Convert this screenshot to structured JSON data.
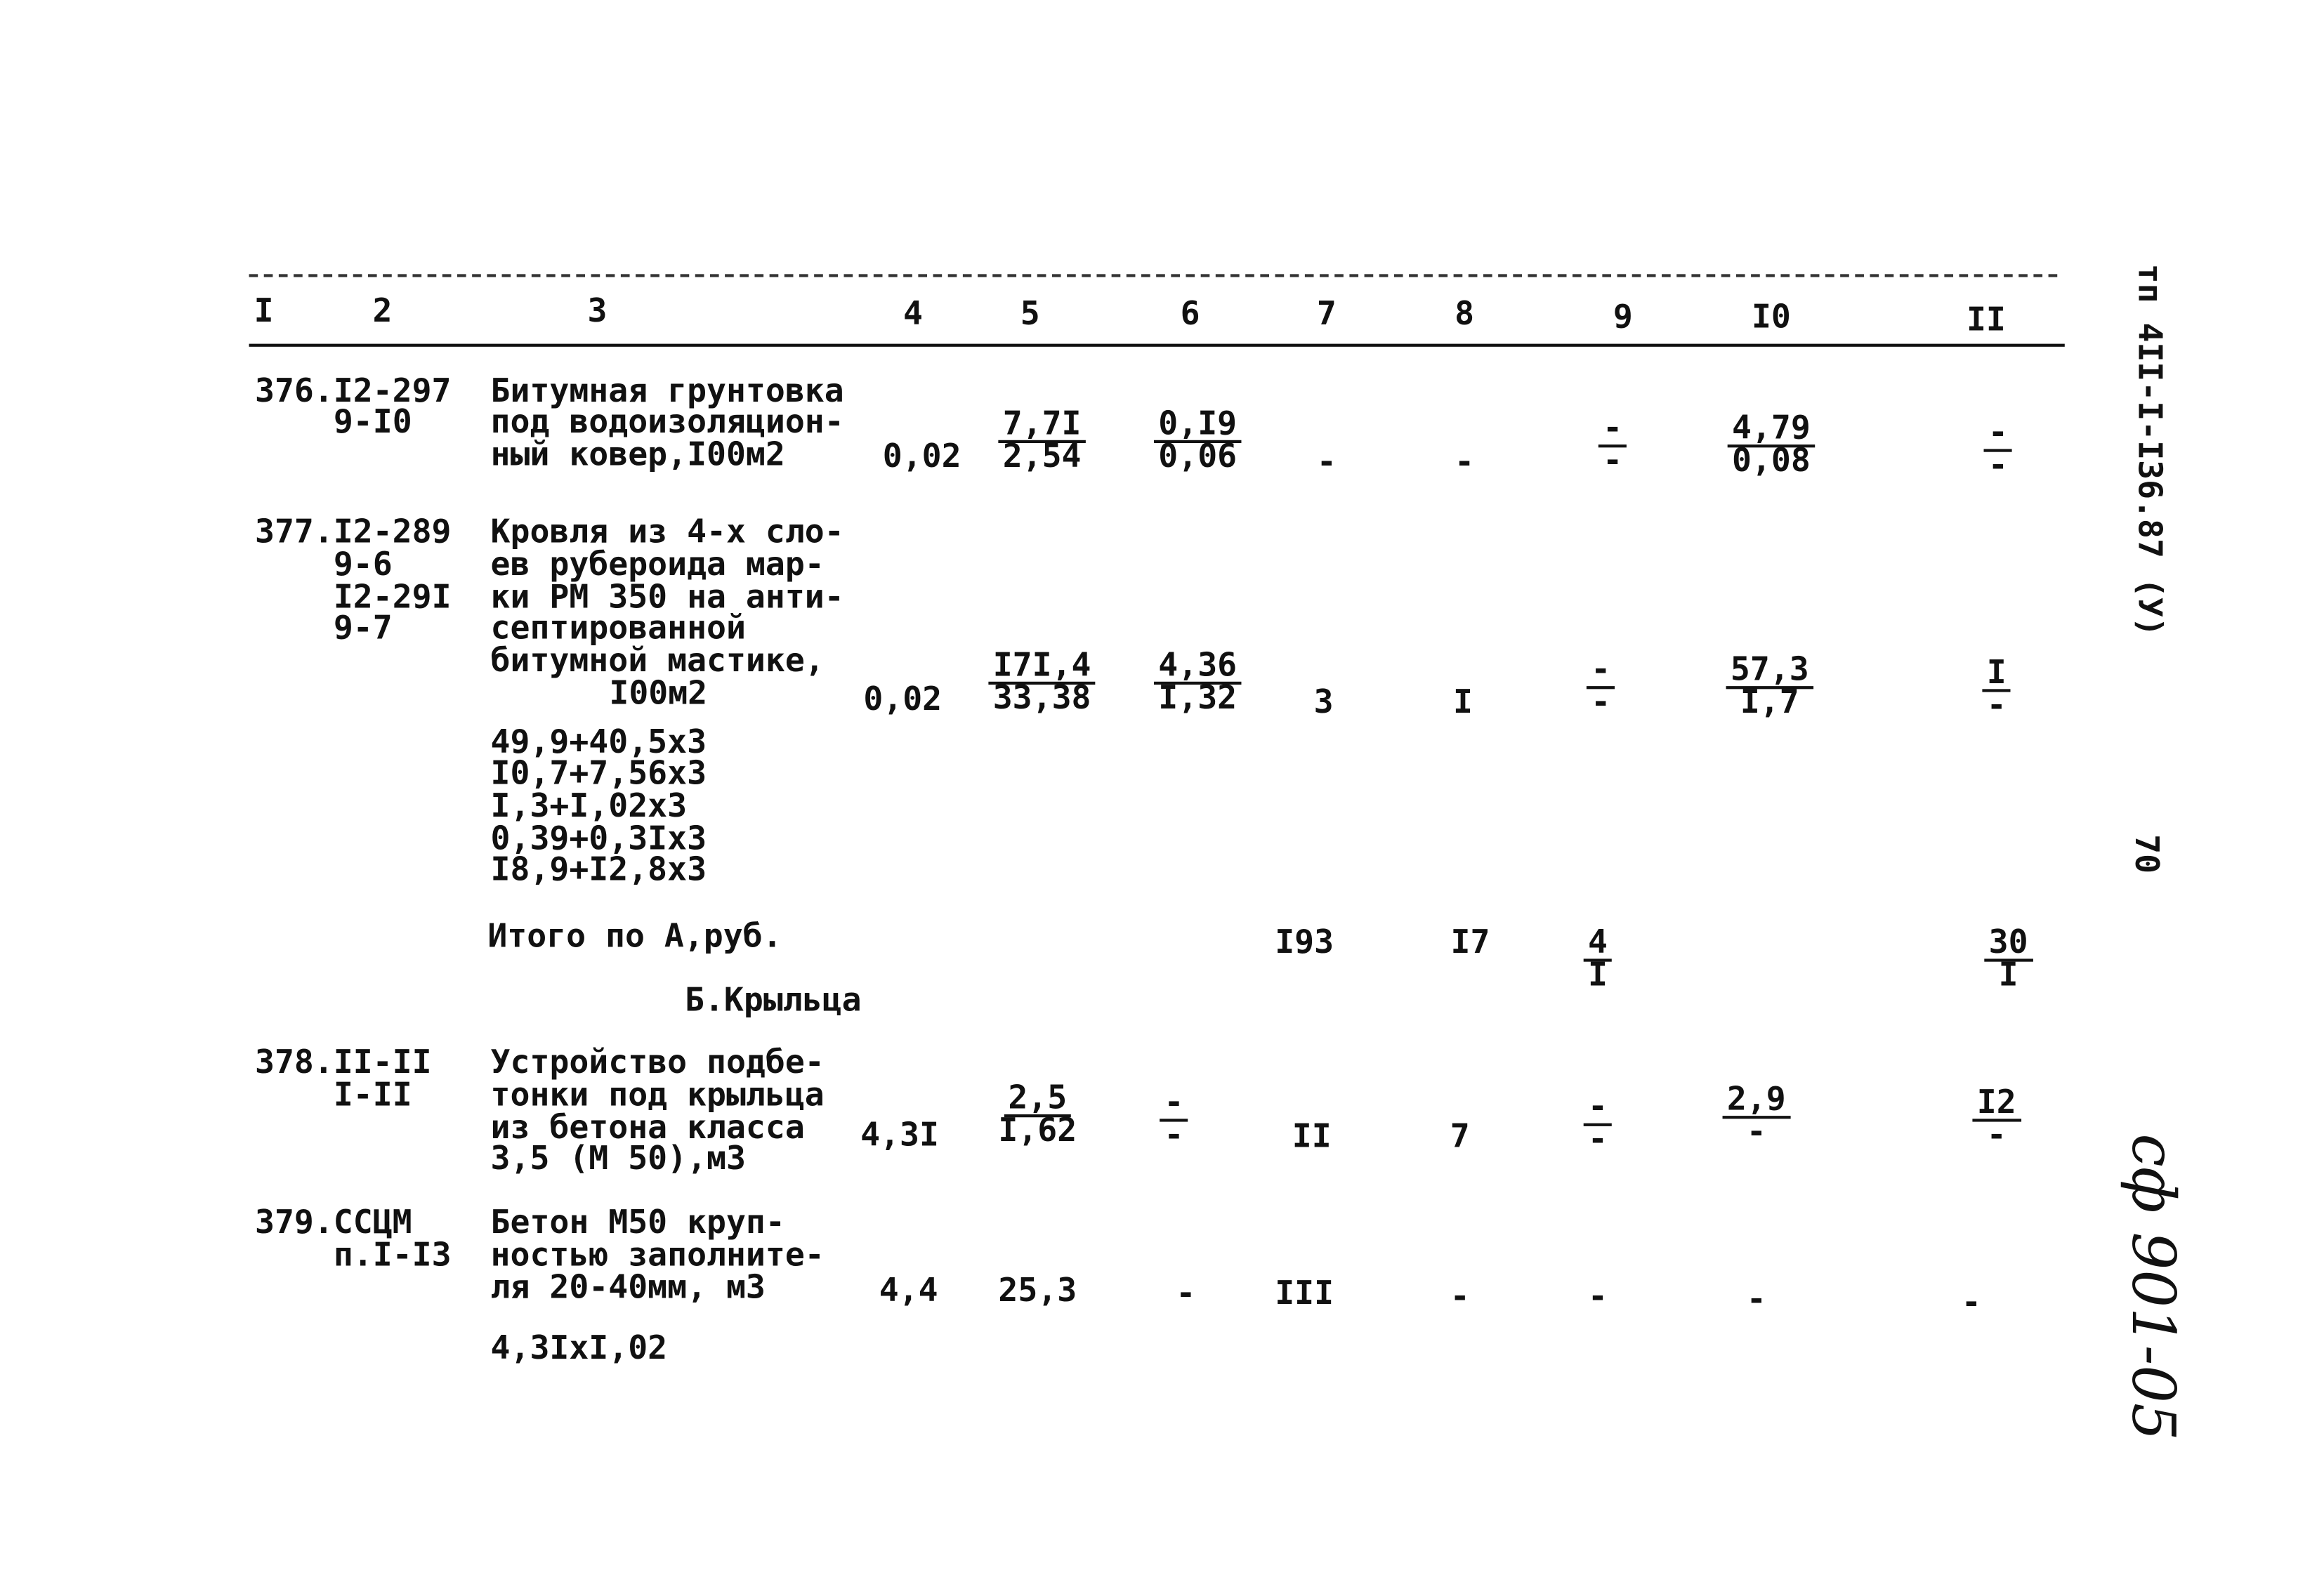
{
  "header": {
    "columns": [
      "I",
      "2",
      "3",
      "4",
      "5",
      "6",
      "7",
      "8",
      "9",
      "I0",
      "II"
    ]
  },
  "rows": [
    {
      "code": [
        "376.I2-297",
        "9-I0"
      ],
      "desc": [
        "Битумная грунтовка",
        "под водоизоляцион-",
        "ный ковер,I00м2"
      ],
      "c4": "0,02",
      "c5": {
        "num": "7,7I",
        "den": "2,54"
      },
      "c6": {
        "num": "0,I9",
        "den": "0,06"
      },
      "c7": "-",
      "c8": "-",
      "c9": {
        "num": "-",
        "den": "-"
      },
      "c10": {
        "num": "4,79",
        "den": "0,08"
      },
      "c11": {
        "num": "-",
        "den": "-"
      }
    },
    {
      "code": [
        "377.I2-289",
        "9-6",
        "I2-29I",
        "9-7"
      ],
      "desc": [
        "Кровля из 4-х сло-",
        "ев рубероида мар-",
        "ки РМ 350 на анти-",
        "септированной",
        "битумной мастике,",
        "I00м2"
      ],
      "c4": "0,02",
      "c5": {
        "num": "I7I,4",
        "den": "33,38"
      },
      "c6": {
        "num": "4,36",
        "den": "I,32"
      },
      "c7": "3",
      "c8": "I",
      "c9": {
        "num": "-",
        "den": "-"
      },
      "c10": {
        "num": "57,3",
        "den": "I,7"
      },
      "c11": {
        "num": "I",
        "den": "-"
      },
      "formulas": [
        "49,9+40,5x3",
        "I0,7+7,56x3",
        "I,3+I,02x3",
        "0,39+0,3Ix3",
        "I8,9+I2,8x3"
      ]
    },
    {
      "code": [
        "378.II-II",
        "I-II"
      ],
      "desc": [
        "Устройство подбе-",
        "тонки под крыльца",
        "из бетона класса",
        "3,5 (М 50),м3"
      ],
      "c4": "4,3I",
      "c5": {
        "num": "2,5",
        "den": "I,62"
      },
      "c6": {
        "num": "-",
        "den": "-"
      },
      "c7": "II",
      "c8": "7",
      "c9": {
        "num": "-",
        "den": "-"
      },
      "c10": {
        "num": "2,9",
        "den": "-"
      },
      "c11": {
        "num": "I2",
        "den": "-"
      }
    },
    {
      "code": [
        "379.ССЦМ",
        "п.I-I3"
      ],
      "desc": [
        "Бетон М50 круп-",
        "ностью заполните-",
        "ля 20-40мм, м3"
      ],
      "c4": "4,4",
      "c5": "25,3",
      "c6": "-",
      "c7": "III",
      "c8": "-",
      "c9": "-",
      "c10": "-",
      "c11": "-",
      "formula": "4,3IxI,02"
    }
  ],
  "total": {
    "label": "Итого по А,руб.",
    "c7": "I93",
    "c8": "I7",
    "c9": {
      "num": "4",
      "den": "I"
    },
    "c11": {
      "num": "30",
      "den": "I"
    }
  },
  "section": "Б.Крыльца",
  "margin": {
    "doc_code": "тп 4II-I-I36.87 (У)",
    "page": "70",
    "handwritten": "сф 901-05"
  }
}
